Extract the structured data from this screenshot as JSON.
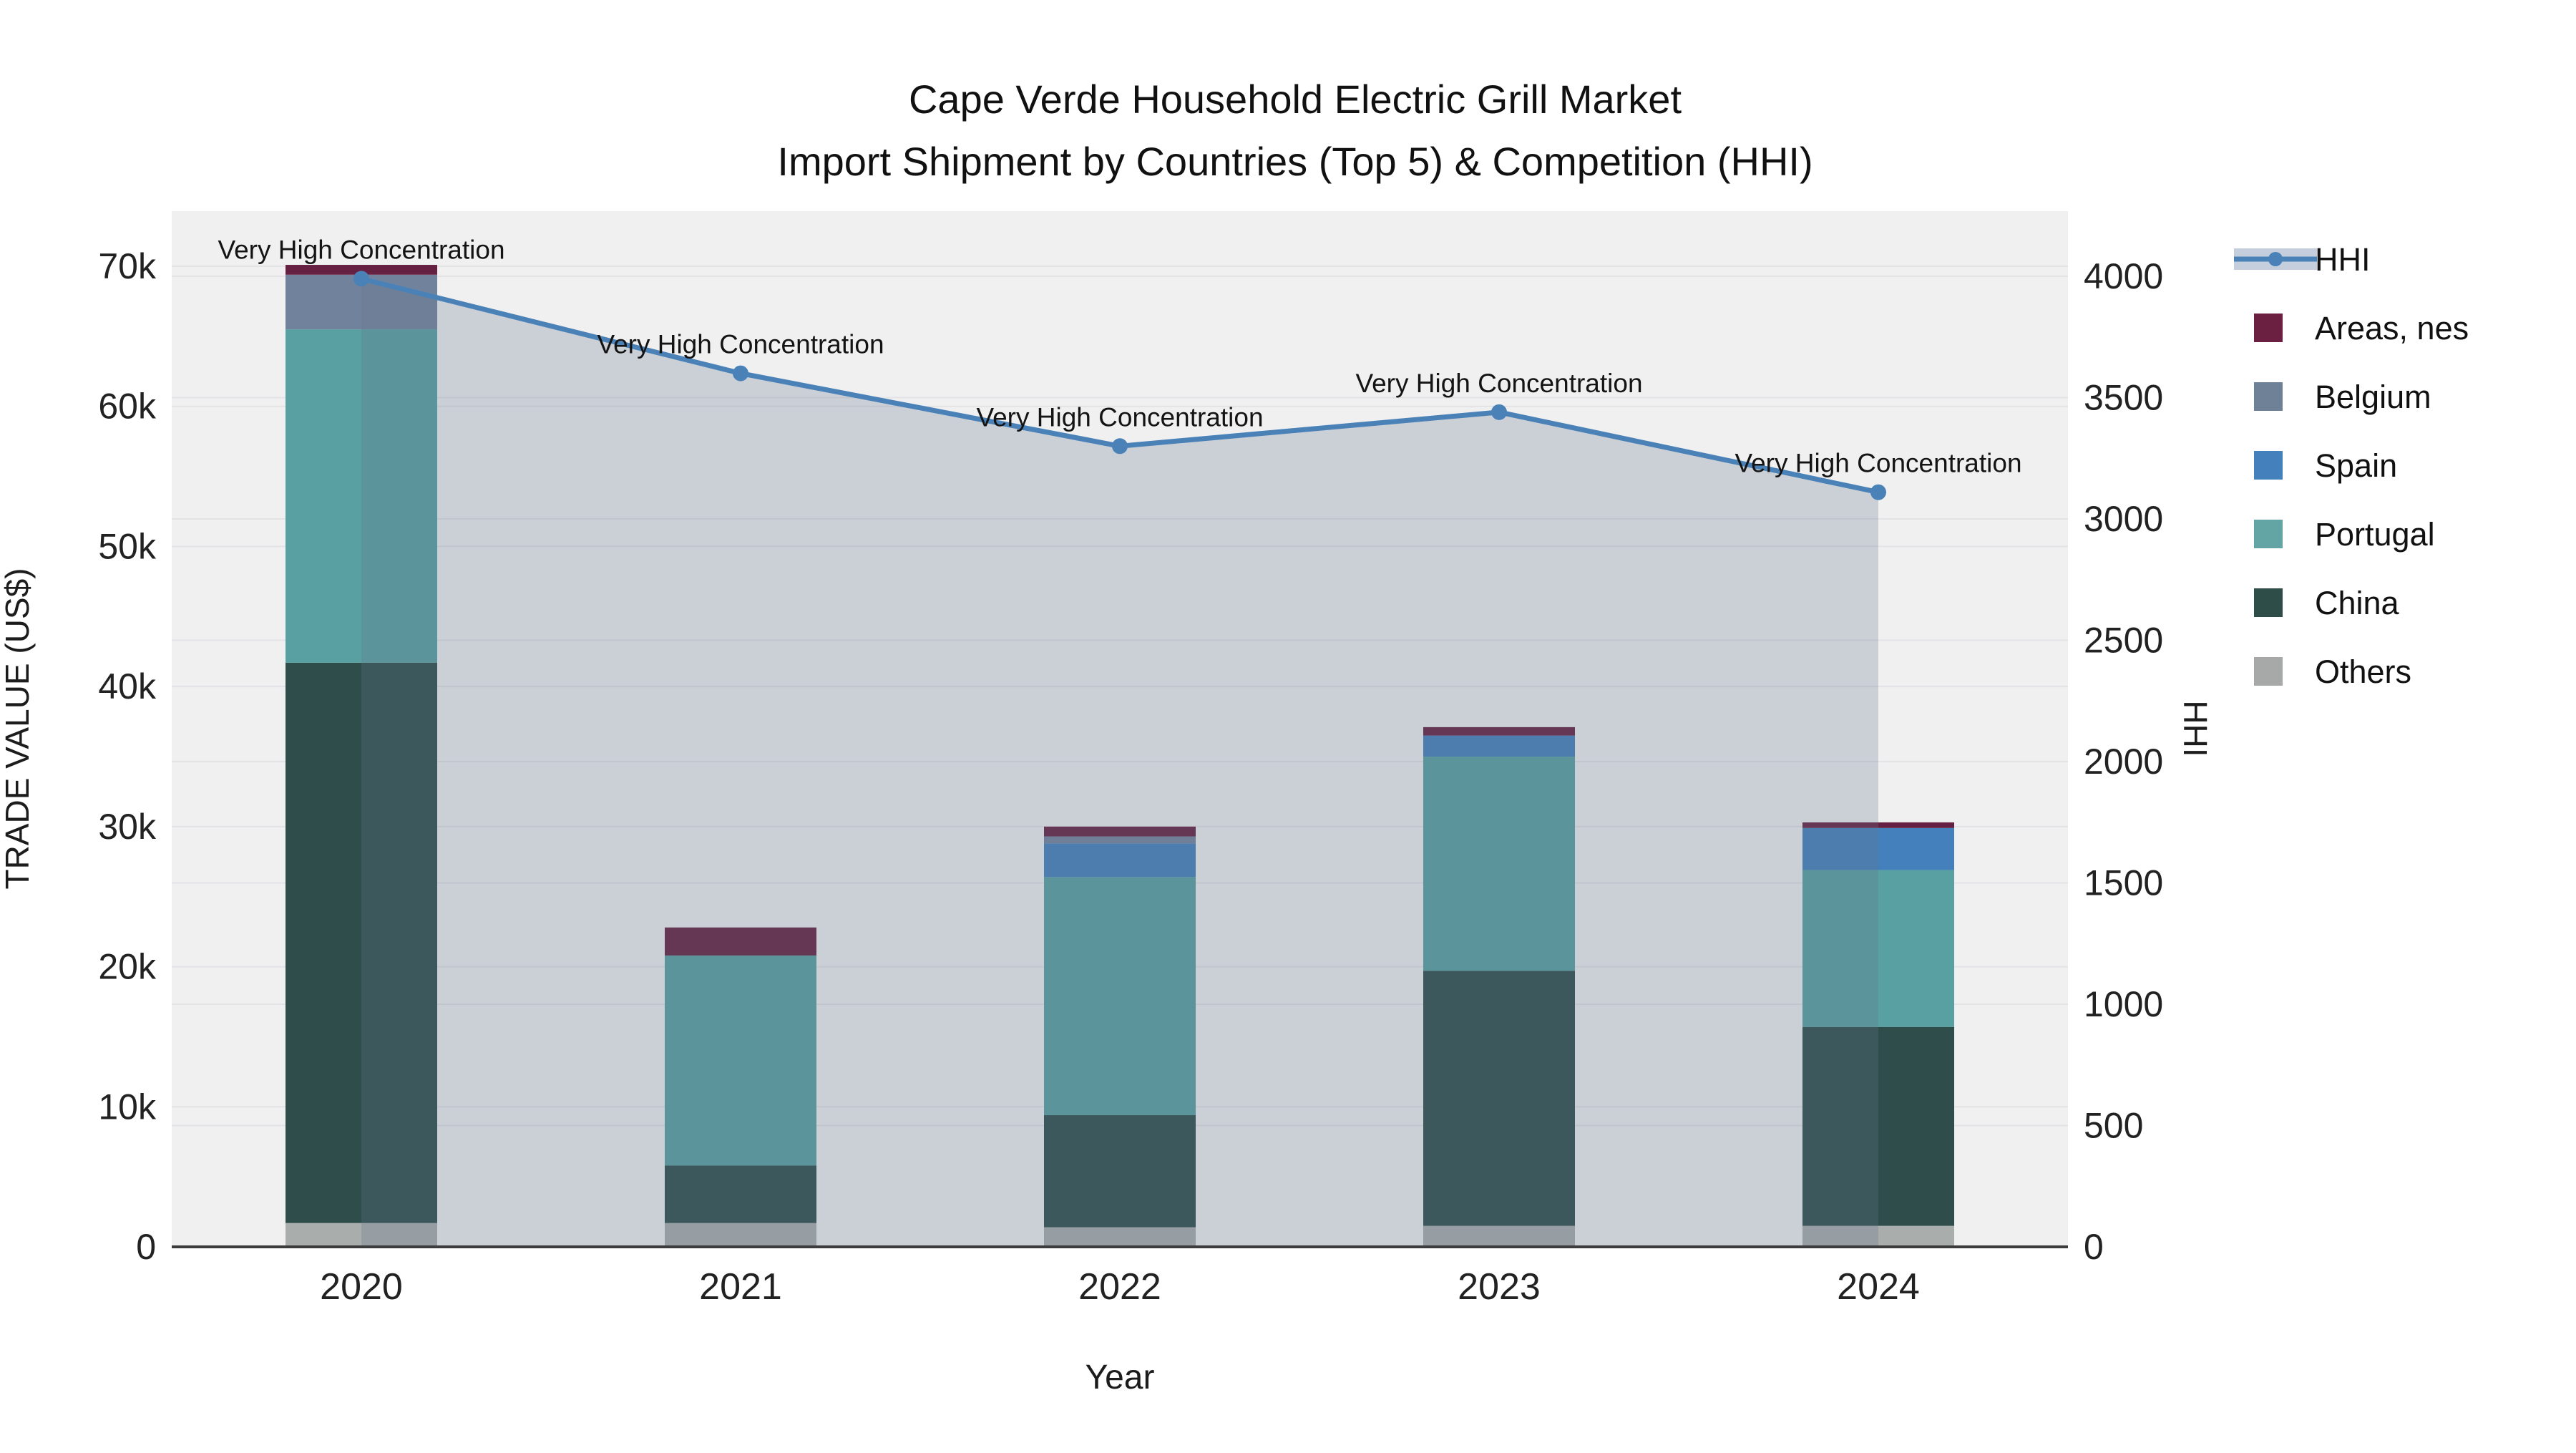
{
  "title": {
    "line1": "Cape Verde Household Electric Grill Market",
    "line2": "Import Shipment by Countries (Top 5) & Competition (HHI)"
  },
  "axes": {
    "left": {
      "title": "TRADE VALUE (US$)",
      "tick_labels": [
        "0",
        "10k",
        "20k",
        "30k",
        "40k",
        "50k",
        "60k",
        "70k"
      ]
    },
    "right": {
      "title": "HHI",
      "tick_labels": [
        "0",
        "500",
        "1000",
        "1500",
        "2000",
        "2500",
        "3000",
        "3500",
        "4000"
      ]
    },
    "x": {
      "title": "Year",
      "tick_labels": [
        "2020",
        "2021",
        "2022",
        "2023",
        "2024"
      ]
    }
  },
  "legend": {
    "items": [
      {
        "label": "HHI",
        "type": "line",
        "color": "#4a82b8",
        "band_color": "#c4cedc"
      },
      {
        "label": "Areas, nes",
        "type": "swatch",
        "color": "#6b1f41"
      },
      {
        "label": "Belgium",
        "type": "swatch",
        "color": "#6f8197"
      },
      {
        "label": "Spain",
        "type": "swatch",
        "color": "#4480bc"
      },
      {
        "label": "Portugal",
        "type": "swatch",
        "color": "#63a5a5"
      },
      {
        "label": "China",
        "type": "swatch",
        "color": "#2f4d48"
      },
      {
        "label": "Others",
        "type": "swatch",
        "color": "#a6a9a8"
      }
    ]
  },
  "colors": {
    "plot_background": "#f0f0f1",
    "gridline": "#e3e3e6",
    "axis_line": "#3c3c3c",
    "hhi_line": "#4a82b8",
    "hhi_area_fill": "#68788c",
    "hhi_area_opacity": 0.27
  },
  "chart_data": {
    "type": "bar",
    "subtype": "stacked bars (left axis) + HHI line with markers and area fill (right axis)",
    "title": "Cape Verde Household Electric Grill Market — Import Shipment by Countries (Top 5) & Competition (HHI)",
    "xlabel": "Year",
    "ylabel": "TRADE VALUE (US$)",
    "y2label": "HHI",
    "categories": [
      "2020",
      "2021",
      "2022",
      "2023",
      "2024"
    ],
    "stack_order_bottom_to_top": [
      "Others",
      "China",
      "Portugal",
      "Spain",
      "Belgium",
      "Areas, nes"
    ],
    "series": [
      {
        "name": "Others",
        "color": "#a9adac",
        "values": [
          1700,
          1700,
          1400,
          1500,
          1500
        ]
      },
      {
        "name": "China",
        "color": "#2e4d4b",
        "values": [
          40000,
          4100,
          8000,
          18200,
          14200
        ]
      },
      {
        "name": "Portugal",
        "color": "#58a0a1",
        "values": [
          23800,
          15000,
          17000,
          15300,
          11200
        ]
      },
      {
        "name": "Spain",
        "color": "#4480bc",
        "values": [
          0,
          0,
          2400,
          1500,
          3000
        ]
      },
      {
        "name": "Belgium",
        "color": "#71839c",
        "values": [
          3900,
          0,
          500,
          0,
          0
        ]
      },
      {
        "name": "Areas, nes",
        "color": "#662041",
        "values": [
          700,
          2000,
          700,
          600,
          400
        ]
      }
    ],
    "bar_totals": [
      70100,
      22800,
      30000,
      37100,
      30300
    ],
    "line_series": {
      "name": "HHI",
      "axis": "right",
      "color": "#4a82b8",
      "values": [
        3990,
        3600,
        3300,
        3440,
        3110
      ],
      "point_annotations": [
        "Very High Concentration",
        "Very High Concentration",
        "Very High Concentration",
        "Very High Concentration",
        "Very High Concentration"
      ]
    },
    "ylim": [
      0,
      74000
    ],
    "y2lim": [
      0,
      4270
    ],
    "left_ticks": [
      0,
      10000,
      20000,
      30000,
      40000,
      50000,
      60000,
      70000
    ],
    "right_ticks": [
      0,
      500,
      1000,
      1500,
      2000,
      2500,
      3000,
      3500,
      4000
    ],
    "grid": "horizontal only: left axis every 10k and right axis every 500, light gray on #f0f0f1",
    "legend_position": "right, outside plot area"
  }
}
